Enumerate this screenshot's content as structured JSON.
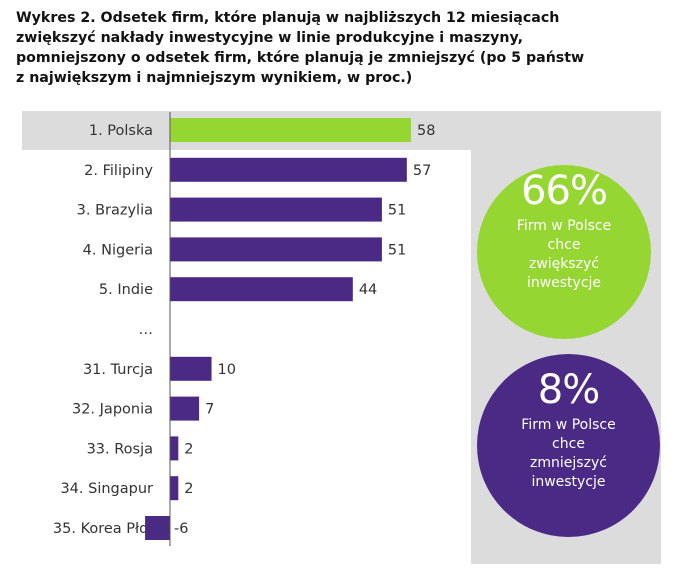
{
  "title_lines": [
    "Wykres 2. Odsetek firm, które planują w najbliższych 12 miesiącach",
    "zwiększyć nakłady inwestycyjne w linie produkcyjne i maszyny,",
    "pomniejszony o odsetek firm, które planują je zmniejszyć (po 5 państw",
    "z największym i najmniejszym wynikiem, w proc.)"
  ],
  "chart_data": {
    "type": "bar",
    "orientation": "horizontal",
    "title": "Wykres 2. Odsetek firm, które planują w najbliższych 12 miesiącach zwiększyć nakłady inwestycyjne w linie produkcyjne i maszyny, pomniejszony o odsetek firm, które planują je zmniejszyć (po 5 państw z największym i najmniejszym wynikiem, w proc.)",
    "categories": [
      "1. Polska",
      "2. Filipiny",
      "3. Brazylia",
      "4. Nigeria",
      "5. Indie",
      "…",
      "31. Turcja",
      "32. Japonia",
      "33. Rosja",
      "34. Singapur",
      "35. Korea Płd."
    ],
    "values": [
      58,
      57,
      51,
      51,
      44,
      null,
      10,
      7,
      2,
      2,
      -6
    ],
    "highlight_index": 0,
    "xlim": [
      -6,
      58
    ],
    "grid": false
  },
  "callouts": {
    "increase": {
      "value": "66%",
      "lines": [
        "Firm w Polsce",
        "chce",
        "zwiększyć",
        "inwestycje"
      ]
    },
    "decrease": {
      "value": "8%",
      "lines": [
        "Firm w Polsce",
        "chce",
        "zmniejszyć",
        "inwestycje"
      ]
    }
  },
  "colors": {
    "highlight": "#96d633",
    "bar": "#4b2a85",
    "panel": "#dcdcdc",
    "bubble_green": "#96d633",
    "bubble_purple": "#4b2a85"
  }
}
